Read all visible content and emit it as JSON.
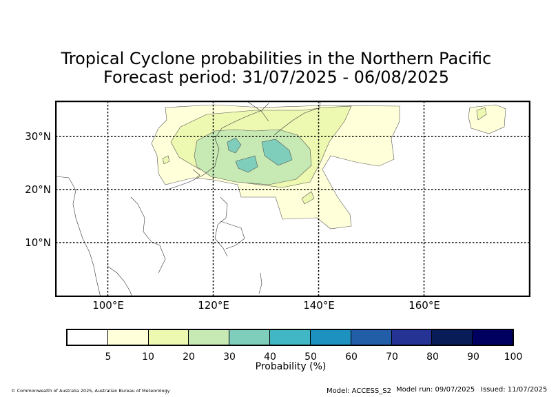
{
  "title": {
    "line1": "Tropical Cyclone probabilities in the Northern Pacific",
    "line2": "Forecast period: 31/07/2025 - 06/08/2025"
  },
  "map": {
    "lat_range": [
      0,
      37
    ],
    "lon_range": [
      90,
      180
    ],
    "lat_lines": [
      {
        "value": 30,
        "label": "30°N"
      },
      {
        "value": 20,
        "label": "20°N"
      },
      {
        "value": 10,
        "label": "10°N"
      }
    ],
    "lon_lines": [
      {
        "value": 100,
        "label": "100°E"
      },
      {
        "value": 120,
        "label": "120°E"
      },
      {
        "value": 140,
        "label": "140°E"
      },
      {
        "value": 160,
        "label": "160°E"
      }
    ]
  },
  "colorbar": {
    "label": "Probability (%)",
    "ticks": [
      "5",
      "10",
      "20",
      "30",
      "40",
      "50",
      "60",
      "70",
      "80",
      "90",
      "100"
    ],
    "colors": [
      "#ffffff",
      "#ffffd9",
      "#edf8b1",
      "#c7e9b4",
      "#7fcdbb",
      "#41b6c4",
      "#1d91c0",
      "#225ea8",
      "#253494",
      "#081d58",
      "#000060"
    ]
  },
  "footer": {
    "copyright": "© Commonwealth of Australia 2025, Australian Bureau of Meteorology",
    "model": "Model: ACCESS_S2",
    "model_run": "Model run: 09/07/2025",
    "issued": "Issued: 11/07/2025"
  }
}
